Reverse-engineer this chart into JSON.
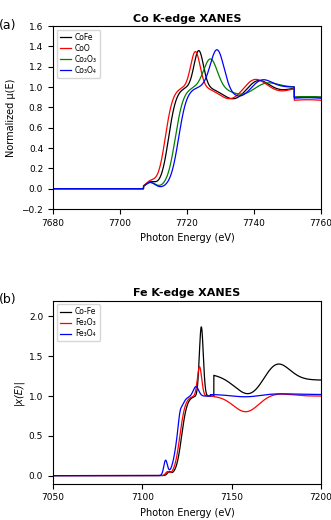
{
  "panel_a": {
    "title": "Co K-edge XANES",
    "xlabel": "Photon Energy (eV)",
    "ylabel": "Normalized μ(E)",
    "xlim": [
      7680,
      7760
    ],
    "ylim": [
      -0.2,
      1.6
    ],
    "yticks": [
      -0.2,
      0.0,
      0.2,
      0.4,
      0.6,
      0.8,
      1.0,
      1.2,
      1.4,
      1.6
    ],
    "xticks": [
      7680,
      7700,
      7720,
      7740,
      7760
    ],
    "legend_labels": [
      "CoFe",
      "CoO",
      "Co₂O₃",
      "Co₃O₄"
    ],
    "legend_colors": [
      "black",
      "red",
      "green",
      "blue"
    ],
    "label": "(a)"
  },
  "panel_b": {
    "title": "Fe K-edge XANES",
    "xlabel": "Photon Energy (eV)",
    "ylabel": "|x(E)|",
    "xlim": [
      7050,
      7200
    ],
    "ylim": [
      -0.1,
      2.2
    ],
    "yticks": [
      0.0,
      0.5,
      1.0,
      1.5,
      2.0
    ],
    "xticks": [
      7050,
      7100,
      7150,
      7200
    ],
    "legend_labels": [
      "Co-Fe",
      "Fe₂O₃",
      "Fe₃O₄"
    ],
    "legend_colors": [
      "black",
      "red",
      "blue"
    ],
    "label": "(b)"
  }
}
